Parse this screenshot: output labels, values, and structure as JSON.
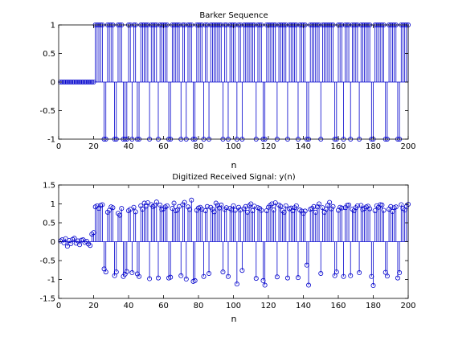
{
  "figure": {
    "background": "#ffffff",
    "axes_color": "#000000",
    "stem_color": "#0000cc"
  },
  "chart_data": [
    {
      "type": "stem",
      "title": "Barker Sequence",
      "xlabel": "n",
      "ylabel": "",
      "xlim": [
        0,
        200
      ],
      "ylim": [
        -1,
        1
      ],
      "xticks": [
        "0",
        "20",
        "40",
        "60",
        "80",
        "100",
        "120",
        "140",
        "160",
        "180",
        "200"
      ],
      "yticks": [
        "-1",
        "-0.5",
        "0",
        "0.5",
        "1"
      ],
      "grid": false,
      "series": [
        {
          "x_start": 1,
          "values": [
            0,
            0,
            0,
            0,
            0,
            0,
            0,
            0,
            0,
            0,
            0,
            0,
            0,
            0,
            0,
            0,
            0,
            0,
            0,
            0,
            1,
            1,
            1,
            1,
            1,
            -1,
            -1,
            1,
            1,
            1,
            1,
            -1,
            -1,
            1,
            1,
            1,
            -1,
            -1,
            -1,
            1,
            1,
            -1,
            1,
            1,
            -1,
            -1,
            1,
            1,
            1,
            1,
            1,
            -1,
            1,
            1,
            1,
            1,
            -1,
            1,
            1,
            1,
            1,
            1,
            -1,
            -1,
            1,
            1,
            1,
            1,
            1,
            -1,
            1,
            1,
            -1,
            1,
            1,
            1,
            -1,
            -1,
            1,
            1,
            1,
            1,
            -1,
            1,
            1,
            -1,
            1,
            1,
            1,
            1,
            1,
            1,
            1,
            -1,
            1,
            1,
            -1,
            1,
            1,
            1,
            1,
            -1,
            1,
            1,
            -1,
            1,
            1,
            1,
            1,
            1,
            1,
            1,
            -1,
            1,
            1,
            1,
            -1,
            -1,
            1,
            1,
            1,
            1,
            1,
            1,
            -1,
            1,
            1,
            1,
            1,
            1,
            -1,
            1,
            1,
            1,
            1,
            1,
            -1,
            1,
            1,
            1,
            1,
            -1,
            -1,
            1,
            1,
            1,
            1,
            1,
            1,
            -1,
            1,
            1,
            1,
            1,
            1,
            1,
            1,
            -1,
            -1,
            1,
            1,
            1,
            -1,
            1,
            1,
            1,
            -1,
            1,
            1,
            1,
            1,
            -1,
            1,
            1,
            1,
            1,
            1,
            1,
            -1,
            -1,
            1,
            1,
            1,
            1,
            1,
            1,
            -1,
            -1,
            1,
            1,
            1,
            1,
            1,
            -1,
            -1,
            1,
            1,
            1,
            1,
            1
          ]
        }
      ]
    },
    {
      "type": "stem",
      "title": "Digitized Received Signal: y(n)",
      "xlabel": "n",
      "ylabel": "",
      "xlim": [
        0,
        200
      ],
      "ylim": [
        -1.5,
        1.5
      ],
      "xticks": [
        "0",
        "20",
        "40",
        "60",
        "80",
        "100",
        "120",
        "140",
        "160",
        "180",
        "200"
      ],
      "yticks": [
        "-1.5",
        "-1",
        "-0.5",
        "0",
        "0.5",
        "1",
        "1.5"
      ],
      "grid": false,
      "series": [
        {
          "x_start": 1,
          "values": [
            0.02,
            0.05,
            -0.03,
            0.08,
            -0.12,
            0.03,
            -0.05,
            0.06,
            0.09,
            -0.04,
            0.02,
            -0.08,
            0.04,
            0.05,
            -0.02,
            0.01,
            -0.06,
            -0.1,
            0.2,
            0.24,
            0.92,
            0.95,
            0.88,
            0.96,
            0.98,
            -0.72,
            -0.8,
            0.78,
            0.83,
            0.92,
            0.9,
            -0.9,
            -0.8,
            0.75,
            0.7,
            0.88,
            -0.92,
            -0.86,
            -0.79,
            0.82,
            0.86,
            -0.82,
            0.91,
            0.79,
            -0.85,
            -0.92,
            0.95,
            0.86,
            1.02,
            0.94,
            1.03,
            -0.98,
            0.98,
            0.93,
            0.96,
            1.05,
            -0.96,
            0.97,
            0.85,
            0.87,
            0.92,
            0.95,
            -0.96,
            -0.94,
            0.88,
            1.02,
            0.82,
            0.84,
            0.93,
            -0.9,
            0.98,
            1.04,
            -0.99,
            0.92,
            0.85,
            1.1,
            -1.05,
            -1.03,
            0.83,
            0.89,
            0.91,
            0.86,
            -0.92,
            0.82,
            0.93,
            -0.84,
            0.91,
            0.86,
            0.79,
            1.02,
            0.96,
            0.89,
            0.97,
            -0.8,
            0.85,
            0.9,
            -0.92,
            0.88,
            0.84,
            0.95,
            0.83,
            -1.12,
            0.91,
            0.84,
            -0.76,
            0.87,
            0.93,
            0.78,
            0.95,
            1.0,
            0.82,
            0.94,
            -0.97,
            0.9,
            0.88,
            0.83,
            -1.03,
            -1.15,
            0.82,
            0.91,
            0.96,
            1.0,
            0.84,
            1.03,
            -0.93,
            0.97,
            0.94,
            0.82,
            0.78,
            0.95,
            -0.96,
            0.87,
            0.89,
            0.82,
            0.9,
            0.95,
            -0.95,
            0.84,
            0.81,
            0.75,
            0.81,
            -0.62,
            -1.15,
            0.86,
            0.88,
            0.93,
            0.78,
            0.92,
            1.0,
            -0.84,
            0.9,
            0.78,
            0.86,
            0.96,
            1.04,
            0.87,
            0.93,
            -0.9,
            -0.8,
            0.83,
            0.91,
            0.89,
            -0.92,
            0.9,
            0.96,
            0.97,
            -0.9,
            0.86,
            0.82,
            0.9,
            0.95,
            -0.82,
            0.96,
            0.85,
            0.88,
            0.92,
            0.94,
            0.87,
            -0.92,
            -1.16,
            0.82,
            0.95,
            0.91,
            0.98,
            0.97,
            0.83,
            -0.81,
            -0.91,
            0.86,
            0.93,
            0.8,
            0.9,
            0.92,
            -0.96,
            -0.82,
            0.98,
            0.88,
            0.84,
            0.93,
            0.99
          ]
        }
      ]
    }
  ]
}
